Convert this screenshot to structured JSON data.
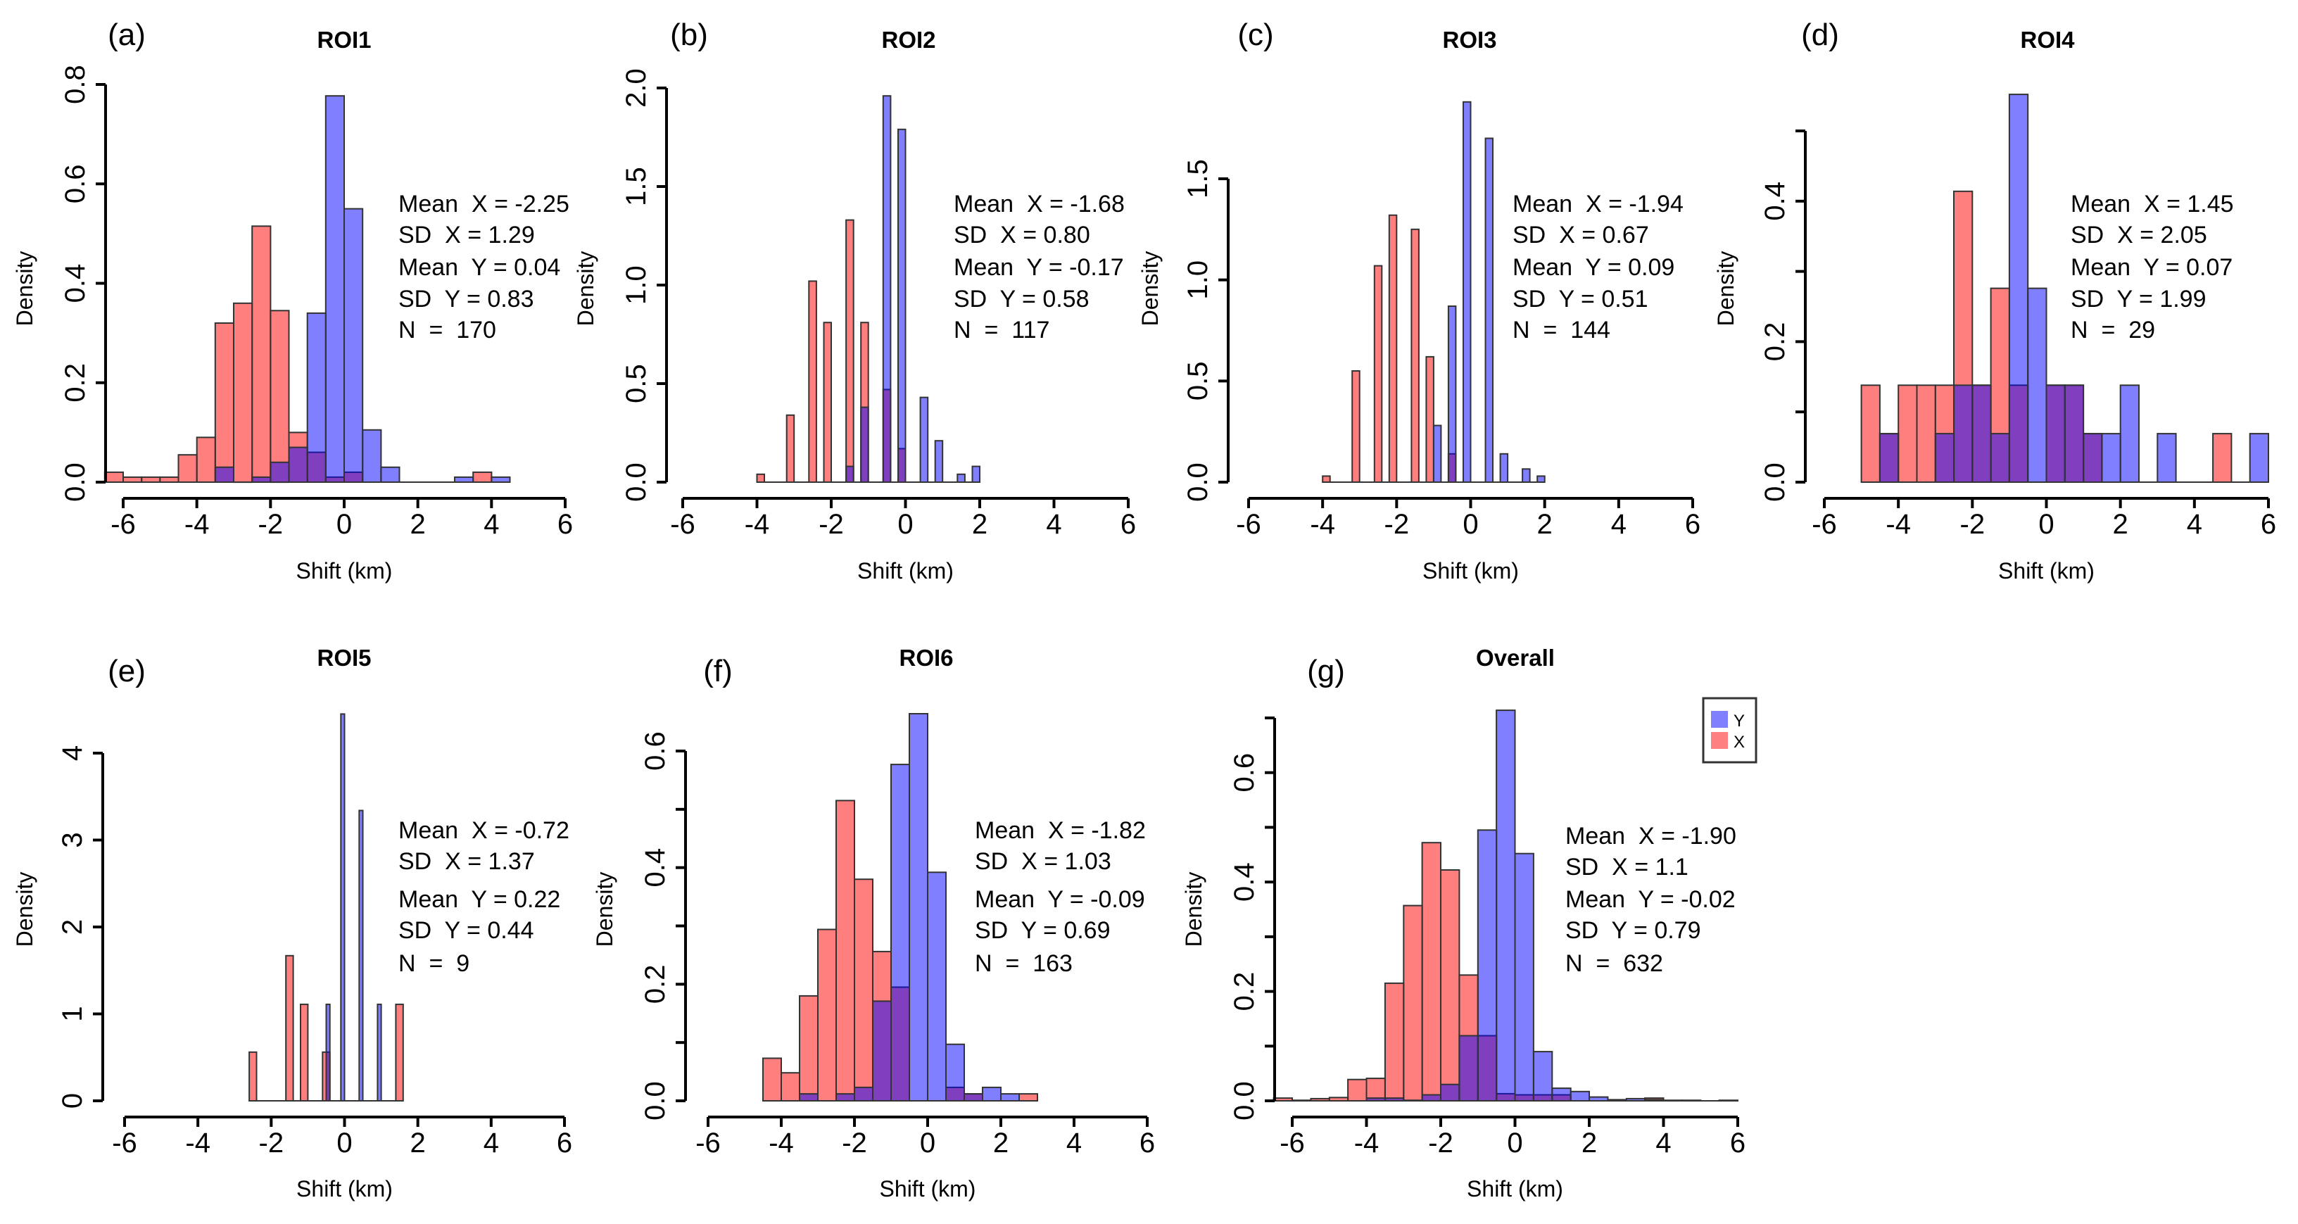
{
  "figure": {
    "colors": {
      "X": "#FF0000",
      "Y": "#0000FF",
      "opacity": 0.5
    },
    "legend": {
      "items": [
        {
          "label": "Y",
          "series": "Y"
        },
        {
          "label": "X",
          "series": "X"
        }
      ],
      "placement": "top-right of panel (g)"
    }
  },
  "chart_data": [
    {
      "type": "bar",
      "panel": "(a)",
      "title": "ROI1",
      "xlabel": "Shift (km)",
      "ylabel": "Density",
      "xlim": [
        -6,
        6
      ],
      "xticks": [
        -6,
        -4,
        -2,
        0,
        2,
        4,
        6
      ],
      "ylim": [
        0,
        0.8
      ],
      "yticks": [
        0,
        0.2,
        0.4,
        0.6,
        0.8
      ],
      "ytick_labels": [
        "0.0",
        "0.2",
        "0.4",
        "0.6",
        "0.8"
      ],
      "stats": [
        "Mean  X = -2.25",
        "SD  X = 1.29",
        "Mean  Y = 0.04",
        "SD  Y = 0.83",
        "N  =  170"
      ],
      "series": [
        {
          "name": "X",
          "bins": [
            [
              -6.5,
              -6,
              0.02
            ],
            [
              -6,
              -5.5,
              0.01
            ],
            [
              -5.5,
              -5,
              0.01
            ],
            [
              -5,
              -4.5,
              0.01
            ],
            [
              -4.5,
              -4,
              0.055
            ],
            [
              -4,
              -3.5,
              0.09
            ],
            [
              -3.5,
              -3,
              0.32
            ],
            [
              -3,
              -2.5,
              0.36
            ],
            [
              -2.5,
              -2,
              0.515
            ],
            [
              -2,
              -1.5,
              0.345
            ],
            [
              -1.5,
              -1,
              0.1
            ],
            [
              -1,
              -0.5,
              0.06
            ],
            [
              -0.5,
              0,
              0.01
            ],
            [
              0,
              0.5,
              0.02
            ],
            [
              3.5,
              4,
              0.02
            ]
          ]
        },
        {
          "name": "Y",
          "bins": [
            [
              -3.5,
              -3,
              0.03
            ],
            [
              -2.5,
              -2,
              0.01
            ],
            [
              -2,
              -1.5,
              0.04
            ],
            [
              -1.5,
              -1,
              0.07
            ],
            [
              -1,
              -0.5,
              0.34
            ],
            [
              -0.5,
              0,
              0.777
            ],
            [
              0,
              0.5,
              0.55
            ],
            [
              0.5,
              1,
              0.105
            ],
            [
              1,
              1.5,
              0.03
            ],
            [
              3,
              3.5,
              0.01
            ],
            [
              4,
              4.5,
              0.01
            ]
          ]
        }
      ]
    },
    {
      "type": "bar",
      "panel": "(b)",
      "title": "ROI2",
      "xlabel": "Shift (km)",
      "ylabel": "Density",
      "xlim": [
        -6,
        6
      ],
      "xticks": [
        -6,
        -4,
        -2,
        0,
        2,
        4,
        6
      ],
      "ylim": [
        0,
        2.0
      ],
      "yticks": [
        0,
        0.5,
        1.0,
        1.5,
        2.0
      ],
      "ytick_labels": [
        "0.0",
        "0.5",
        "1.0",
        "1.5",
        "2.0"
      ],
      "stats": [
        "Mean  X = -1.68",
        "SD  X = 0.80",
        "Mean  Y = -0.17",
        "SD  Y = 0.58",
        "N  =  117"
      ],
      "series": [
        {
          "name": "X",
          "bins": [
            [
              -4.0,
              -3.8,
              0.04
            ],
            [
              -3.2,
              -3.0,
              0.34
            ],
            [
              -2.6,
              -2.4,
              1.02
            ],
            [
              -2.2,
              -2.0,
              0.81
            ],
            [
              -1.6,
              -1.4,
              1.33
            ],
            [
              -1.2,
              -1.0,
              0.81
            ],
            [
              -0.6,
              -0.4,
              0.47
            ],
            [
              -0.2,
              0.0,
              0.17
            ]
          ]
        },
        {
          "name": "Y",
          "bins": [
            [
              -1.6,
              -1.4,
              0.08
            ],
            [
              -1.2,
              -1.0,
              0.38
            ],
            [
              -0.6,
              -0.4,
              1.96
            ],
            [
              -0.2,
              0.0,
              1.79
            ],
            [
              0.4,
              0.6,
              0.43
            ],
            [
              0.8,
              1.0,
              0.21
            ],
            [
              1.4,
              1.6,
              0.04
            ],
            [
              1.8,
              2.0,
              0.08
            ]
          ]
        }
      ]
    },
    {
      "type": "bar",
      "panel": "(c)",
      "title": "ROI3",
      "xlabel": "Shift (km)",
      "ylabel": "Density",
      "xlim": [
        -6,
        6
      ],
      "xticks": [
        -6,
        -4,
        -2,
        0,
        2,
        4,
        6
      ],
      "ylim": [
        0,
        1.5
      ],
      "yticks": [
        0,
        0.5,
        1.0,
        1.5
      ],
      "ytick_labels": [
        "0.0",
        "0.5",
        "1.0",
        "1.5"
      ],
      "stats": [
        "Mean  X = -1.94",
        "SD  X = 0.67",
        "Mean  Y = 0.09",
        "SD  Y = 0.51",
        "N  =  144"
      ],
      "series": [
        {
          "name": "X",
          "bins": [
            [
              -4.0,
              -3.8,
              0.03
            ],
            [
              -3.2,
              -3.0,
              0.55
            ],
            [
              -2.6,
              -2.4,
              1.07
            ],
            [
              -2.2,
              -2.0,
              1.32
            ],
            [
              -1.6,
              -1.4,
              1.25
            ],
            [
              -1.2,
              -1.0,
              0.62
            ],
            [
              -0.6,
              -0.4,
              0.14
            ]
          ]
        },
        {
          "name": "Y",
          "bins": [
            [
              -1.0,
              -0.8,
              0.28
            ],
            [
              -0.6,
              -0.4,
              0.87
            ],
            [
              -0.2,
              0.0,
              1.88
            ],
            [
              0.4,
              0.6,
              1.7
            ],
            [
              0.8,
              1.0,
              0.14
            ],
            [
              1.4,
              1.6,
              0.065
            ],
            [
              1.8,
              2.0,
              0.03
            ]
          ]
        }
      ]
    },
    {
      "type": "bar",
      "panel": "(d)",
      "title": "ROI4",
      "xlabel": "Shift (km)",
      "ylabel": "Density",
      "xlim": [
        -6,
        6
      ],
      "xticks": [
        -6,
        -4,
        -2,
        0,
        2,
        4,
        6
      ],
      "ylim": [
        0,
        0.5
      ],
      "yticks": [
        0,
        0.1,
        0.2,
        0.3,
        0.4,
        0.5
      ],
      "ytick_labels": [
        "0.0",
        "",
        "0.2",
        "",
        "0.4",
        ""
      ],
      "stats": [
        "Mean  X = 1.45",
        "SD  X = 2.05",
        "Mean  Y = 0.07",
        "SD  Y = 1.99",
        "N  =  29"
      ],
      "series": [
        {
          "name": "X",
          "bins": [
            [
              -5,
              -4.5,
              0.138
            ],
            [
              -4.5,
              -4,
              0.069
            ],
            [
              -4,
              -3.5,
              0.138
            ],
            [
              -3.5,
              -3,
              0.138
            ],
            [
              -3,
              -2.5,
              0.138
            ],
            [
              -2.5,
              -2,
              0.414
            ],
            [
              -2,
              -1.5,
              0.138
            ],
            [
              -1.5,
              -1,
              0.276
            ],
            [
              -1,
              -0.5,
              0.138
            ],
            [
              0,
              0.5,
              0.138
            ],
            [
              0.5,
              1,
              0.138
            ],
            [
              1,
              1.5,
              0.069
            ],
            [
              4.5,
              5,
              0.069
            ]
          ]
        },
        {
          "name": "Y",
          "bins": [
            [
              -4.5,
              -4,
              0.069
            ],
            [
              -3,
              -2.5,
              0.069
            ],
            [
              -2.5,
              -2,
              0.138
            ],
            [
              -2,
              -1.5,
              0.138
            ],
            [
              -1.5,
              -1,
              0.069
            ],
            [
              -1,
              -0.5,
              0.552
            ],
            [
              -0.5,
              0,
              0.276
            ],
            [
              0,
              0.5,
              0.138
            ],
            [
              0.5,
              1,
              0.138
            ],
            [
              1,
              1.5,
              0.069
            ],
            [
              1.5,
              2,
              0.069
            ],
            [
              2,
              2.5,
              0.138
            ],
            [
              3,
              3.5,
              0.069
            ],
            [
              5.5,
              6,
              0.069
            ]
          ]
        }
      ]
    },
    {
      "type": "bar",
      "panel": "(e)",
      "title": "ROI5",
      "xlabel": "Shift (km)",
      "ylabel": "Density",
      "xlim": [
        -6,
        6
      ],
      "xticks": [
        -6,
        -4,
        -2,
        0,
        2,
        4,
        6
      ],
      "ylim": [
        0,
        4
      ],
      "yticks": [
        0,
        1,
        2,
        3,
        4
      ],
      "ytick_labels": [
        "0",
        "1",
        "2",
        "3",
        "4"
      ],
      "stats": [
        "Mean  X = -0.72",
        "SD  X = 1.37",
        "Mean  Y = 0.22",
        "SD  Y = 0.44",
        "N  =  9"
      ],
      "series": [
        {
          "name": "X",
          "bins": [
            [
              -2.6,
              -2.4,
              0.56
            ],
            [
              -1.6,
              -1.4,
              1.67
            ],
            [
              -1.2,
              -1.0,
              1.11
            ],
            [
              -0.6,
              -0.4,
              0.56
            ],
            [
              1.4,
              1.6,
              1.11
            ]
          ]
        },
        {
          "name": "Y",
          "bins": [
            [
              -0.5,
              -0.4,
              1.11
            ],
            [
              -0.1,
              0.0,
              4.45
            ],
            [
              0.4,
              0.5,
              3.34
            ],
            [
              0.9,
              1.0,
              1.11
            ]
          ]
        }
      ]
    },
    {
      "type": "bar",
      "panel": "(f)",
      "title": "ROI6",
      "xlabel": "Shift (km)",
      "ylabel": "Density",
      "xlim": [
        -6,
        6
      ],
      "xticks": [
        -6,
        -4,
        -2,
        0,
        2,
        4,
        6
      ],
      "ylim": [
        0,
        0.6
      ],
      "yticks": [
        0,
        0.1,
        0.2,
        0.3,
        0.4,
        0.5,
        0.6
      ],
      "ytick_labels": [
        "0.0",
        "",
        "0.2",
        "",
        "0.4",
        "",
        "0.6"
      ],
      "stats": [
        "Mean  X = -1.82",
        "SD  X = 1.03",
        "Mean  Y = -0.09",
        "SD  Y = 0.69",
        "N  =  163"
      ],
      "series": [
        {
          "name": "X",
          "bins": [
            [
              -4.5,
              -4,
              0.073
            ],
            [
              -4,
              -3.5,
              0.048
            ],
            [
              -3.5,
              -3,
              0.18
            ],
            [
              -3,
              -2.5,
              0.294
            ],
            [
              -2.5,
              -2,
              0.515
            ],
            [
              -2,
              -1.5,
              0.38
            ],
            [
              -1.5,
              -1,
              0.256
            ],
            [
              -1,
              -0.5,
              0.195
            ],
            [
              0.5,
              1,
              0.023
            ],
            [
              1,
              1.5,
              0.012
            ],
            [
              2.5,
              3,
              0.012
            ]
          ]
        },
        {
          "name": "Y",
          "bins": [
            [
              -3.5,
              -3,
              0.012
            ],
            [
              -2.5,
              -2,
              0.012
            ],
            [
              -2,
              -1.5,
              0.023
            ],
            [
              -1.5,
              -1,
              0.171
            ],
            [
              -1,
              -0.5,
              0.577
            ],
            [
              -0.5,
              0,
              0.664
            ],
            [
              0,
              0.5,
              0.392
            ],
            [
              0.5,
              1,
              0.097
            ],
            [
              1,
              1.5,
              0.012
            ],
            [
              1.5,
              2,
              0.023
            ],
            [
              2,
              2.5,
              0.012
            ]
          ]
        }
      ]
    },
    {
      "type": "bar",
      "panel": "(g)",
      "title": "Overall",
      "xlabel": "Shift (km)",
      "ylabel": "Density",
      "xlim": [
        -6,
        6
      ],
      "xticks": [
        -6,
        -4,
        -2,
        0,
        2,
        4,
        6
      ],
      "ylim": [
        0,
        0.7
      ],
      "yticks": [
        0,
        0.1,
        0.2,
        0.3,
        0.4,
        0.5,
        0.6,
        0.7
      ],
      "ytick_labels": [
        "0.0",
        "",
        "0.2",
        "",
        "0.4",
        "",
        "0.6",
        ""
      ],
      "stats": [
        "Mean  X = -1.90",
        "SD  X = 1.1",
        "Mean  Y = -0.02",
        "SD  Y = 0.79",
        "N  =  632"
      ],
      "legend": [
        "Y",
        "X"
      ],
      "series": [
        {
          "name": "X",
          "bins": [
            [
              -6.5,
              -6,
              0.005
            ],
            [
              -6,
              -5.5,
              0.001
            ],
            [
              -5.5,
              -5,
              0.004
            ],
            [
              -5,
              -4.5,
              0.006
            ],
            [
              -4.5,
              -4,
              0.039
            ],
            [
              -4,
              -3.5,
              0.041
            ],
            [
              -3.5,
              -3,
              0.215
            ],
            [
              -3,
              -2.5,
              0.357
            ],
            [
              -2.5,
              -2,
              0.472
            ],
            [
              -2,
              -1.5,
              0.422
            ],
            [
              -1.5,
              -1,
              0.23
            ],
            [
              -1,
              -0.5,
              0.119
            ],
            [
              -0.5,
              0,
              0.013
            ],
            [
              0,
              0.5,
              0.011
            ],
            [
              0.5,
              1,
              0.011
            ],
            [
              1,
              1.5,
              0.011
            ],
            [
              3.5,
              4,
              0.005
            ]
          ]
        },
        {
          "name": "Y",
          "bins": [
            [
              -4,
              -3.5,
              0.005
            ],
            [
              -3.5,
              -3,
              0.005
            ],
            [
              -3,
              -2.5,
              0.001
            ],
            [
              -2.5,
              -2,
              0.011
            ],
            [
              -2,
              -1.5,
              0.03
            ],
            [
              -1.5,
              -1,
              0.119
            ],
            [
              -1,
              -0.5,
              0.495
            ],
            [
              -0.5,
              0,
              0.714
            ],
            [
              0,
              0.5,
              0.452
            ],
            [
              0.5,
              1,
              0.09
            ],
            [
              1,
              1.5,
              0.023
            ],
            [
              1.5,
              2,
              0.017
            ],
            [
              2,
              2.5,
              0.007
            ],
            [
              2.5,
              3,
              0.002
            ],
            [
              3,
              3.5,
              0.004
            ],
            [
              3.5,
              4,
              0.002
            ],
            [
              4,
              4.5,
              0.001
            ],
            [
              4.5,
              5,
              0.001
            ],
            [
              5.5,
              6,
              0.001
            ]
          ]
        }
      ]
    }
  ]
}
